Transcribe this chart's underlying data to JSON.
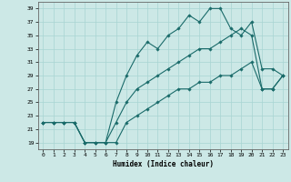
{
  "xlabel": "Humidex (Indice chaleur)",
  "bg_color": "#cce8e6",
  "grid_color": "#a8d4d2",
  "line_color": "#1a6b6a",
  "xlim": [
    -0.5,
    23.5
  ],
  "ylim": [
    18,
    40
  ],
  "yticks": [
    19,
    21,
    23,
    25,
    27,
    29,
    31,
    33,
    35,
    37,
    39
  ],
  "xticks": [
    0,
    1,
    2,
    3,
    4,
    5,
    6,
    7,
    8,
    9,
    10,
    11,
    12,
    13,
    14,
    15,
    16,
    17,
    18,
    19,
    20,
    21,
    22,
    23
  ],
  "series": [
    {
      "x": [
        0,
        1,
        2,
        3,
        4,
        5,
        6,
        7,
        8,
        9,
        10,
        11,
        12,
        13,
        14,
        15,
        16,
        17,
        18,
        19,
        20,
        21,
        22,
        23
      ],
      "y": [
        22,
        22,
        22,
        22,
        19,
        19,
        19,
        19,
        22,
        23,
        24,
        25,
        26,
        27,
        27,
        28,
        28,
        29,
        29,
        30,
        31,
        27,
        27,
        29
      ]
    },
    {
      "x": [
        0,
        1,
        2,
        3,
        4,
        5,
        6,
        7,
        8,
        9,
        10,
        11,
        12,
        13,
        14,
        15,
        16,
        17,
        18,
        19,
        20,
        21,
        22,
        23
      ],
      "y": [
        22,
        22,
        22,
        22,
        19,
        19,
        19,
        22,
        25,
        27,
        28,
        29,
        30,
        31,
        32,
        33,
        33,
        34,
        35,
        36,
        35,
        27,
        27,
        29
      ]
    },
    {
      "x": [
        0,
        1,
        2,
        3,
        4,
        5,
        6,
        7,
        8,
        9,
        10,
        11,
        12,
        13,
        14,
        15,
        16,
        17,
        18,
        19,
        20,
        21,
        22,
        23
      ],
      "y": [
        22,
        22,
        22,
        22,
        19,
        19,
        19,
        25,
        29,
        32,
        34,
        33,
        35,
        36,
        38,
        37,
        39,
        39,
        36,
        35,
        37,
        30,
        30,
        29
      ]
    }
  ]
}
